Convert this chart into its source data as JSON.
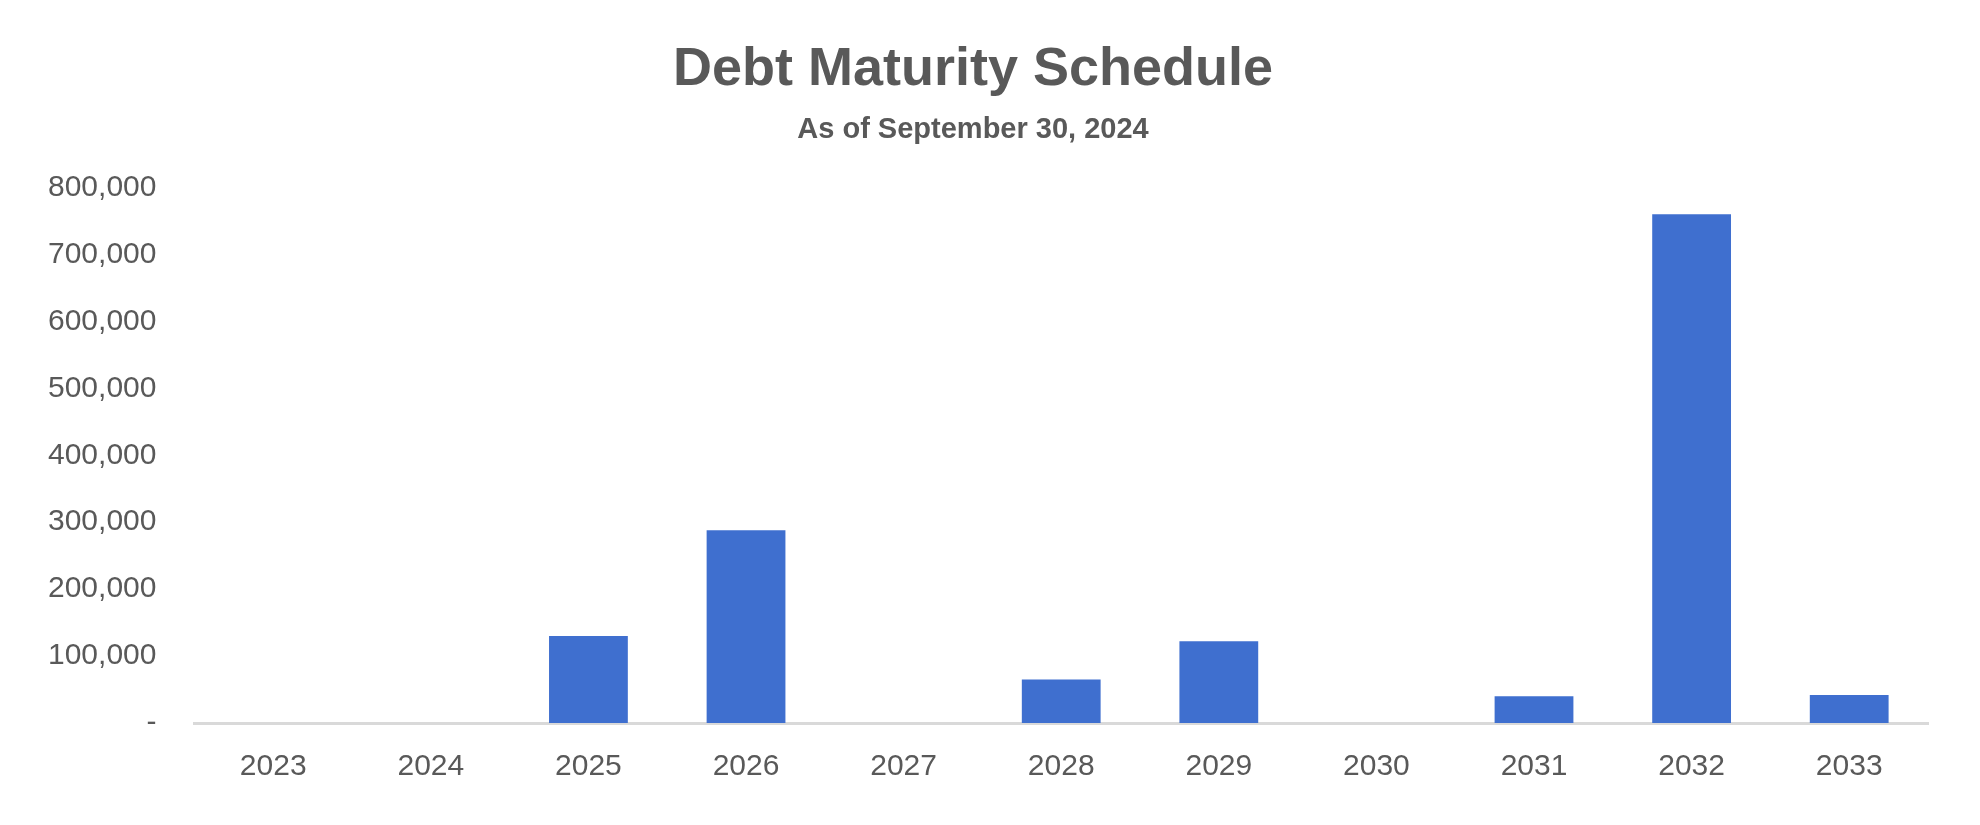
{
  "chart_data": {
    "type": "bar",
    "title": "Debt Maturity Schedule",
    "subtitle": "As of September 30, 2024",
    "categories": [
      "2023",
      "2024",
      "2025",
      "2026",
      "2027",
      "2028",
      "2029",
      "2030",
      "2031",
      "2032",
      "2033"
    ],
    "values": [
      0,
      0,
      130000,
      288000,
      0,
      65000,
      122000,
      0,
      40000,
      760000,
      42000
    ],
    "color": "#3f6fcf",
    "ylim": [
      0,
      800000
    ],
    "yticks": [
      {
        "value": 0,
        "label": "-"
      },
      {
        "value": 100000,
        "label": "100,000"
      },
      {
        "value": 200000,
        "label": "200,000"
      },
      {
        "value": 300000,
        "label": "300,000"
      },
      {
        "value": 400000,
        "label": "400,000"
      },
      {
        "value": 500000,
        "label": "500,000"
      },
      {
        "value": 600000,
        "label": "600,000"
      },
      {
        "value": 700000,
        "label": "700,000"
      },
      {
        "value": 800000,
        "label": "800,000"
      }
    ]
  }
}
